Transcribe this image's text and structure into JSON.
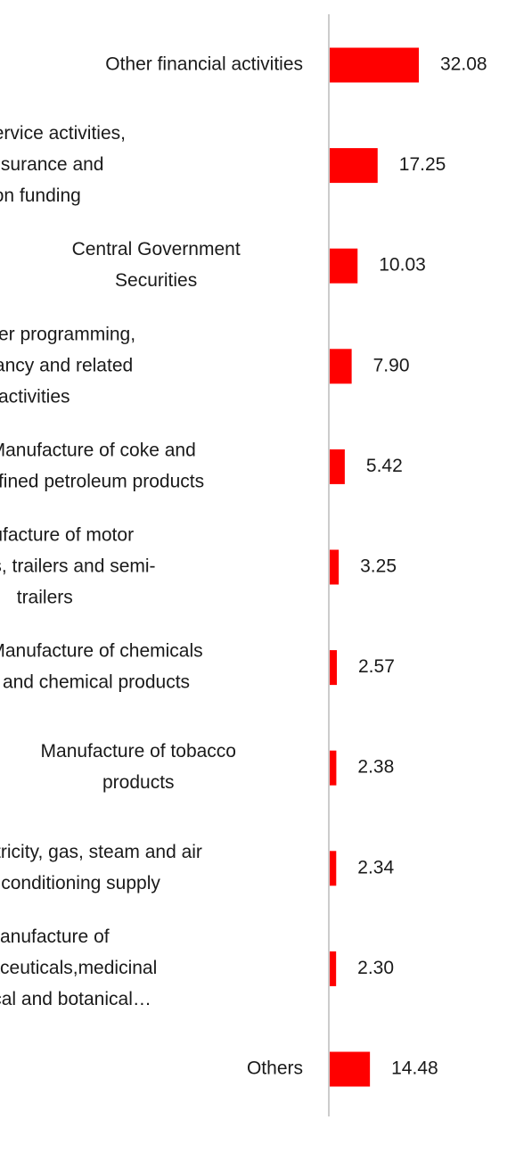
{
  "chart_data": {
    "type": "bar",
    "orientation": "horizontal",
    "categories": [
      "Other financial activities",
      "Financial service activities, except insurance and pension funding",
      "Central Government Securities",
      "Computer programming, consultancy and related activities",
      "Manufacture of coke and refined petroleum products",
      "Manufacture of motor vehicles, trailers and semi-trailers",
      "Manufacture of chemicals and chemical products",
      "Manufacture of tobacco products",
      "Electricity, gas, steam and air conditioning supply",
      "Manufacture of pharmaceuticals,medicinal chemical and botanical…",
      "Others"
    ],
    "category_lines": [
      [
        "Other financial activities"
      ],
      [
        "Financial service activities,",
        "except insurance and",
        "pension funding"
      ],
      [
        "Central Government",
        "Securities"
      ],
      [
        "Computer programming,",
        "consultancy and related",
        "activities"
      ],
      [
        "Manufacture of coke and",
        "refined petroleum products"
      ],
      [
        "Manufacture of motor",
        "vehicles, trailers and semi-",
        "trailers"
      ],
      [
        "Manufacture of chemicals",
        "and chemical products"
      ],
      [
        "Manufacture of tobacco",
        "products"
      ],
      [
        "Electricity, gas, steam and air",
        "conditioning supply"
      ],
      [
        "Manufacture of",
        "pharmaceuticals,medicinal",
        "chemical and botanical…"
      ],
      [
        "Others"
      ]
    ],
    "values": [
      32.08,
      17.25,
      10.03,
      7.9,
      5.42,
      3.25,
      2.57,
      2.38,
      2.34,
      2.3,
      14.48
    ],
    "value_labels": [
      "32.08",
      "17.25",
      "10.03",
      "7.90",
      "5.42",
      "3.25",
      "2.57",
      "2.38",
      "2.34",
      "2.30",
      "14.48"
    ],
    "title": "",
    "xlabel": "",
    "ylabel": "",
    "xlim": [
      0,
      32.08
    ],
    "grid": false,
    "legend": "none",
    "bar_color": "#ff0000",
    "axis_color": "#cccccc"
  }
}
